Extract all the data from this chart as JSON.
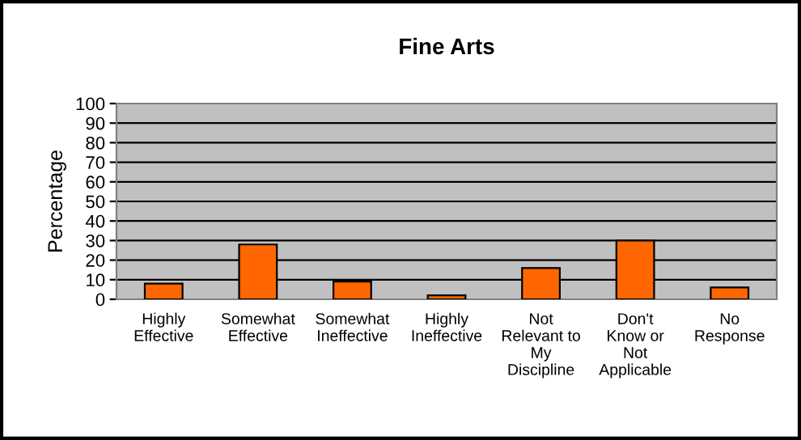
{
  "chart_data": {
    "type": "bar",
    "title": "Fine Arts",
    "ylabel": "Percentage",
    "categories": [
      "Highly\nEffective",
      "Somewhat\nEffective",
      "Somewhat\nIneffective",
      "Highly\nIneffective",
      "Not\nRelevant to\nMy\nDiscipline",
      "Don't\nKnow or\nNot\nApplicable",
      "No\nResponse"
    ],
    "values": [
      8,
      28,
      9,
      2,
      16,
      30,
      6
    ],
    "color": "#ff6600",
    "ylim": [
      0,
      100
    ],
    "yticks": [
      0,
      10,
      20,
      30,
      40,
      50,
      60,
      70,
      80,
      90,
      100
    ],
    "grid": "y"
  }
}
